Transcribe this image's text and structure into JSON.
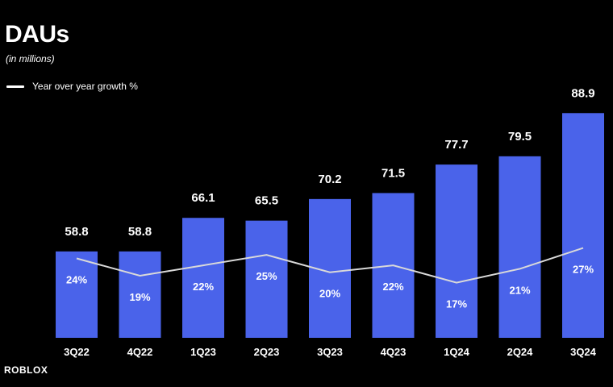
{
  "header": {
    "title": "DAUs",
    "subtitle": "(in millions)"
  },
  "legend": {
    "label": "Year over year growth %"
  },
  "logo": {
    "text": "ROBLOX"
  },
  "colors": {
    "background": "#000000",
    "bar": "#4a63ea",
    "line": "#d9d9d9",
    "text": "#ffffff"
  },
  "chart_data": {
    "type": "bar",
    "title": "DAUs",
    "subtitle": "(in millions)",
    "categories": [
      "3Q22",
      "4Q22",
      "1Q23",
      "2Q23",
      "3Q23",
      "4Q23",
      "1Q24",
      "2Q24",
      "3Q24"
    ],
    "series": [
      {
        "type": "bar",
        "values": [
          58.8,
          58.8,
          66.1,
          65.5,
          70.2,
          71.5,
          77.7,
          79.5,
          88.9
        ]
      },
      {
        "name": "Year over year growth %",
        "type": "line",
        "values": [
          24,
          19,
          22,
          25,
          20,
          22,
          17,
          21,
          27
        ]
      }
    ],
    "labels": {
      "bar": [
        "58.8",
        "58.8",
        "66.1",
        "65.5",
        "70.2",
        "71.5",
        "77.7",
        "79.5",
        "88.9"
      ],
      "growth": [
        "24%",
        "19%",
        "22%",
        "25%",
        "20%",
        "22%",
        "17%",
        "21%",
        "27%"
      ]
    },
    "legend_position": "top-left",
    "grid": false
  }
}
